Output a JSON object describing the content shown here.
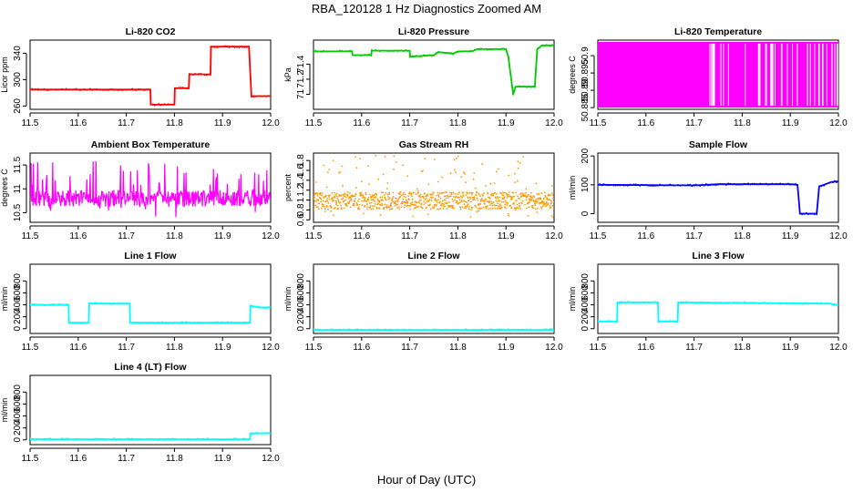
{
  "figure": {
    "title": "RBA_120128  1 Hz Diagnostics Zoomed AM",
    "xlabel": "Hour of Day (UTC)"
  },
  "chart_data": [
    {
      "type": "line",
      "title": "Li-820 CO2",
      "ylabel": "Licor ppm",
      "color": "#ff0000",
      "xlim": [
        11.5,
        12.0
      ],
      "ylim": [
        255,
        360
      ],
      "yticks": [
        260,
        300,
        340
      ],
      "xticks": [
        11.5,
        11.6,
        11.7,
        11.8,
        11.9,
        12.0
      ],
      "x": [
        11.5,
        11.75,
        11.751,
        11.8,
        11.801,
        11.83,
        11.831,
        11.875,
        11.876,
        11.955,
        11.96,
        11.965,
        12.0
      ],
      "y": [
        285,
        285,
        262,
        262,
        287,
        287,
        308,
        308,
        350,
        350,
        275,
        275,
        275
      ]
    },
    {
      "type": "line",
      "title": "Li-820 Pressure",
      "ylabel": "kPa",
      "color": "#00cc00",
      "xlim": [
        11.5,
        12.0
      ],
      "ylim": [
        70.8,
        71.72
      ],
      "yticks": [
        71.0,
        71.2,
        71.4
      ],
      "xticks": [
        11.5,
        11.6,
        11.7,
        11.8,
        11.9,
        12.0
      ],
      "x": [
        11.5,
        11.58,
        11.581,
        11.62,
        11.621,
        11.7,
        11.701,
        11.75,
        11.76,
        11.79,
        11.8,
        11.83,
        11.84,
        11.9,
        11.905,
        11.915,
        11.92,
        11.96,
        11.965,
        11.975,
        11.98,
        12.0
      ],
      "y": [
        71.57,
        71.57,
        71.52,
        71.52,
        71.58,
        71.58,
        71.5,
        71.52,
        71.56,
        71.54,
        71.57,
        71.57,
        71.6,
        71.6,
        71.5,
        71.0,
        71.1,
        71.1,
        71.6,
        71.65,
        71.65,
        71.65
      ]
    },
    {
      "type": "line",
      "title": "Li-820 Temperature",
      "ylabel": "degrees C",
      "color": "#ff00ff",
      "xlim": [
        11.5,
        12.0
      ],
      "ylim": [
        50.8845,
        50.9045
      ],
      "yticks": [
        50.885,
        50.89,
        50.895,
        50.9
      ],
      "xticks": [
        11.5,
        11.6,
        11.7,
        11.8,
        11.9,
        12.0
      ],
      "series_range": [
        50.885,
        50.904
      ]
    },
    {
      "type": "line",
      "title": "Ambient Box Temperature",
      "ylabel": "degrees C",
      "color": "#ff00ff",
      "xlim": [
        11.5,
        12.0
      ],
      "ylim": [
        10.3,
        11.75
      ],
      "yticks": [
        10.5,
        11.0,
        11.5
      ],
      "xticks": [
        11.5,
        11.6,
        11.7,
        11.8,
        11.9,
        12.0
      ],
      "series_range": [
        10.4,
        11.6
      ],
      "baseline": 10.8
    },
    {
      "type": "scatter",
      "title": "Gas Stream RH",
      "ylabel": "percent",
      "color": "#ff9900",
      "xlim": [
        11.5,
        12.0
      ],
      "ylim": [
        0.55,
        1.95
      ],
      "yticks": [
        0.6,
        0.8,
        1.0,
        1.2,
        1.4,
        1.6,
        1.8
      ],
      "xticks": [
        11.5,
        11.6,
        11.7,
        11.8,
        11.9,
        12.0
      ],
      "series_range": [
        0.65,
        1.9
      ],
      "baseline": 0.95
    },
    {
      "type": "line",
      "title": "Sample Flow",
      "ylabel": "ml/min",
      "color": "#0000ff",
      "xlim": [
        11.5,
        12.0
      ],
      "ylim": [
        -30,
        210
      ],
      "yticks": [
        0,
        100,
        200
      ],
      "xticks": [
        11.5,
        11.6,
        11.7,
        11.8,
        11.9,
        12.0
      ],
      "x": [
        11.5,
        11.7,
        11.75,
        11.9,
        11.915,
        11.92,
        11.955,
        11.96,
        11.97,
        11.985,
        12.0
      ],
      "y": [
        100,
        98,
        102,
        102,
        100,
        0,
        0,
        95,
        100,
        110,
        112
      ]
    },
    {
      "type": "line",
      "title": "Line 1 Flow",
      "ylabel": "ml/min",
      "color": "#00ffff",
      "xlim": [
        11.5,
        12.0
      ],
      "ylim": [
        -80,
        1080
      ],
      "yticks": [
        0,
        200,
        400,
        600,
        800
      ],
      "xticks": [
        11.5,
        11.6,
        11.7,
        11.8,
        11.9,
        12.0
      ],
      "x": [
        11.5,
        11.58,
        11.581,
        11.622,
        11.623,
        11.707,
        11.708,
        11.957,
        11.958,
        11.985,
        12.0
      ],
      "y": [
        400,
        400,
        100,
        100,
        420,
        420,
        100,
        100,
        380,
        350,
        360
      ]
    },
    {
      "type": "line",
      "title": "Line 2 Flow",
      "ylabel": "ml/min",
      "color": "#00ffff",
      "xlim": [
        11.5,
        12.0
      ],
      "ylim": [
        -80,
        1080
      ],
      "yticks": [
        0,
        200,
        400,
        600,
        800
      ],
      "xticks": [
        11.5,
        11.6,
        11.7,
        11.8,
        11.9,
        12.0
      ],
      "x": [
        11.5,
        12.0
      ],
      "y": [
        -20,
        -20
      ]
    },
    {
      "type": "line",
      "title": "Line 3 Flow",
      "ylabel": "ml/min",
      "color": "#00ffff",
      "xlim": [
        11.5,
        12.0
      ],
      "ylim": [
        -80,
        1080
      ],
      "yticks": [
        0,
        200,
        400,
        600,
        800
      ],
      "xticks": [
        11.5,
        11.6,
        11.7,
        11.8,
        11.9,
        12.0
      ],
      "x": [
        11.5,
        11.54,
        11.541,
        11.625,
        11.626,
        11.666,
        11.667,
        11.98,
        12.0
      ],
      "y": [
        120,
        120,
        440,
        440,
        120,
        120,
        440,
        420,
        400
      ]
    },
    {
      "type": "line",
      "title": "Line 4 (LT) Flow",
      "ylabel": "ml/min",
      "color": "#00ffff",
      "xlim": [
        11.5,
        12.0
      ],
      "ylim": [
        -80,
        1080
      ],
      "yticks": [
        0,
        200,
        400,
        600,
        800
      ],
      "xticks": [
        11.5,
        11.6,
        11.7,
        11.8,
        11.9,
        12.0
      ],
      "x": [
        11.5,
        11.957,
        11.958,
        12.0
      ],
      "y": [
        10,
        10,
        110,
        110
      ]
    }
  ]
}
